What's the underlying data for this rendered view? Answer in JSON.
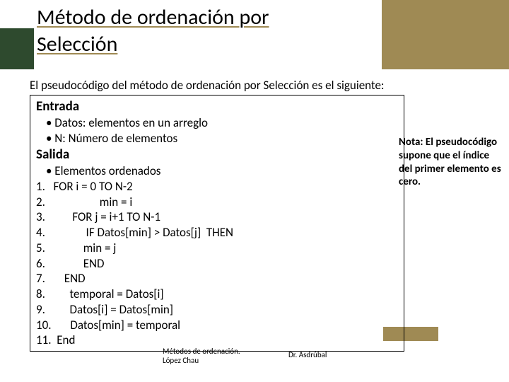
{
  "title": "Método de ordenación por\nSelección",
  "intro": "El pseudocódigo del método de ordenación por Selección es el siguiente:",
  "pseudo": {
    "entrada_head": "Entrada",
    "datos": "•  Datos: elementos en un arreglo",
    "n": "•  N: Número de elementos",
    "salida_head": "Salida",
    "salida": "•  Elementos ordenados",
    "s1": "1.   FOR i = 0 TO N-2",
    "s2": "2.                    min = i",
    "s3": "3.          FOR j = i+1 TO N-1",
    "s4": "4.               IF Datos[min] > Datos[j]  THEN",
    "s5": "5.              min = j",
    "s6": "6.              END",
    "s7": "7.       END",
    "s8": "8.         temporal = Datos[i]",
    "s9": "9.         Datos[i] = Datos[min]",
    "s10": "10.       Datos[min] = temporal",
    "s11": "11.  End"
  },
  "note": "Nota: El pseudocódigo supone que el índice del primer elemento es cero.",
  "footer_left": "Métodos de ordenación.\nLópez Chau",
  "footer_right": "Dr. Asdrúbal",
  "colors": {
    "header_green": "#2e4a2e",
    "accent_olive": "#9f8a54",
    "bg": "#ffffff"
  }
}
